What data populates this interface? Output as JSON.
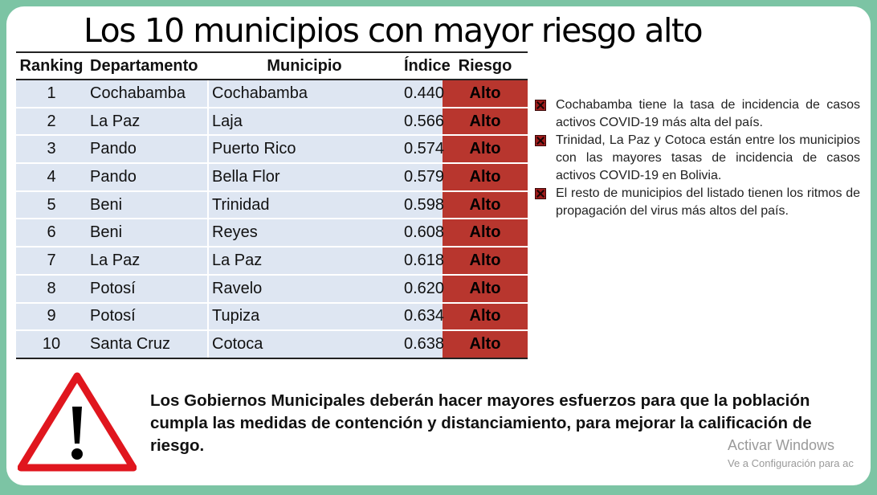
{
  "title": "Los 10 municipios con mayor riesgo alto",
  "table": {
    "headers": [
      "Ranking",
      "Departamento",
      "Municipio",
      "Índice",
      "Riesgo"
    ],
    "rows": [
      {
        "rank": "1",
        "dep": "Cochabamba",
        "mun": "Cochabamba",
        "idx": "0.440",
        "risk": "Alto"
      },
      {
        "rank": "2",
        "dep": "La Paz",
        "mun": "Laja",
        "idx": "0.566",
        "risk": "Alto"
      },
      {
        "rank": "3",
        "dep": "Pando",
        "mun": "Puerto Rico",
        "idx": "0.574",
        "risk": "Alto"
      },
      {
        "rank": "4",
        "dep": "Pando",
        "mun": "Bella Flor",
        "idx": "0.579",
        "risk": "Alto"
      },
      {
        "rank": "5",
        "dep": "Beni",
        "mun": "Trinidad",
        "idx": "0.598",
        "risk": "Alto"
      },
      {
        "rank": "6",
        "dep": "Beni",
        "mun": "Reyes",
        "idx": "0.608",
        "risk": "Alto"
      },
      {
        "rank": "7",
        "dep": "La Paz",
        "mun": "La Paz",
        "idx": "0.618",
        "risk": "Alto"
      },
      {
        "rank": "8",
        "dep": "Potosí",
        "mun": "Ravelo",
        "idx": "0.620",
        "risk": "Alto"
      },
      {
        "rank": "9",
        "dep": "Potosí",
        "mun": "Tupiza",
        "idx": "0.634",
        "risk": "Alto"
      },
      {
        "rank": "10",
        "dep": "Santa Cruz",
        "mun": "Cotoca",
        "idx": "0.638",
        "risk": "Alto"
      }
    ]
  },
  "bullets": [
    "Cochabamba tiene la tasa de incidencia de casos activos COVID-19 más alta del país.",
    "Trinidad, La Paz y Cotoca están entre los municipios con las mayores tasas de incidencia de casos activos COVID-19 en Bolivia.",
    "El resto de municipios del listado tienen los ritmos de propagación del virus más altos del país."
  ],
  "note": "Los Gobiernos Municipales deberán hacer mayores esfuerzos para que la población cumpla las medidas de contención y distanciamiento, para mejorar la calificación de riesgo.",
  "watermark": {
    "line1": "Activar Windows",
    "line2": "Ve a Configuración para ac"
  },
  "colors": {
    "frame": "#7cc4a4",
    "risk_cell": "#b8362e",
    "row_fill": "#dee6f2",
    "warning_red": "#e0161e"
  },
  "icons": [
    "warning-icon",
    "bullet-x-icon"
  ]
}
